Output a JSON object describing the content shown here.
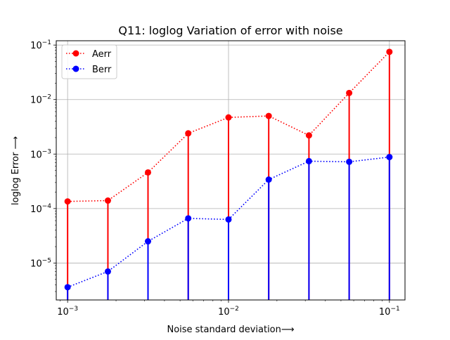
{
  "chart_data": {
    "type": "line",
    "title": "Q11: loglog Variation of error with noise",
    "xlabel": "Noise standard deviation⟶",
    "ylabel": "loglog Error ⟶",
    "xscale": "log",
    "yscale": "log",
    "xlim": [
      0.00085,
      0.125
    ],
    "ylim": [
      2.1e-06,
      0.12
    ],
    "grid": true,
    "legend_position": "top-left",
    "x": [
      0.001,
      0.00178,
      0.00316,
      0.00562,
      0.01,
      0.01778,
      0.03162,
      0.05623,
      0.1
    ],
    "x_ticks": [
      {
        "value": 0.001,
        "base": "10",
        "exp": "−3"
      },
      {
        "value": 0.01,
        "base": "10",
        "exp": "−2"
      },
      {
        "value": 0.1,
        "base": "10",
        "exp": "−1"
      }
    ],
    "y_ticks": [
      {
        "value": 1e-05,
        "base": "10",
        "exp": "−5"
      },
      {
        "value": 0.0001,
        "base": "10",
        "exp": "−4"
      },
      {
        "value": 0.001,
        "base": "10",
        "exp": "−3"
      },
      {
        "value": 0.01,
        "base": "10",
        "exp": "−2"
      },
      {
        "value": 0.1,
        "base": "10",
        "exp": "−1"
      }
    ],
    "series": [
      {
        "name": "Aerr",
        "color": "#ff0000",
        "values": [
          0.000135,
          0.00014,
          0.00046,
          0.0024,
          0.0047,
          0.005,
          0.0022,
          0.0132,
          0.075
        ]
      },
      {
        "name": "Berr",
        "color": "#0000ff",
        "values": [
          3.6e-06,
          7e-06,
          2.5e-05,
          6.6e-05,
          6.3e-05,
          0.00034,
          0.00074,
          0.00072,
          0.00088
        ]
      }
    ]
  }
}
